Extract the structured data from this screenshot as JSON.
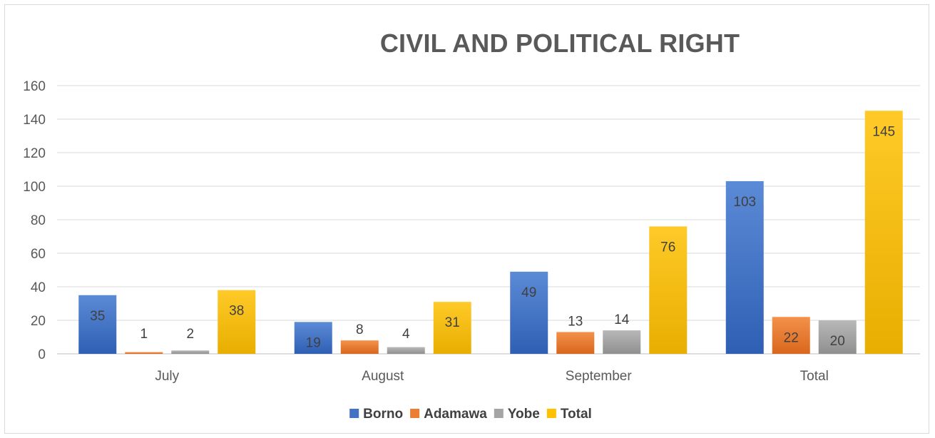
{
  "chart_data": {
    "type": "bar",
    "title": "CIVIL AND POLITICAL RIGHT",
    "categories": [
      "July",
      "August",
      "September",
      "Total"
    ],
    "series": [
      {
        "name": "Borno",
        "values": [
          35,
          19,
          49,
          103
        ],
        "color": "#4472c4"
      },
      {
        "name": "Adamawa",
        "values": [
          1,
          8,
          13,
          22
        ],
        "color": "#ed7d31"
      },
      {
        "name": "Yobe",
        "values": [
          2,
          4,
          14,
          20
        ],
        "color": "#a5a5a5"
      },
      {
        "name": "Total",
        "values": [
          38,
          31,
          76,
          145
        ],
        "color": "#ffc000"
      }
    ],
    "yticks": [
      "0",
      "20",
      "40",
      "60",
      "80",
      "100",
      "120",
      "140",
      "160"
    ],
    "ylim": [
      0,
      160
    ],
    "grid": true,
    "legend_position": "bottom",
    "xlabel": "",
    "ylabel": ""
  }
}
